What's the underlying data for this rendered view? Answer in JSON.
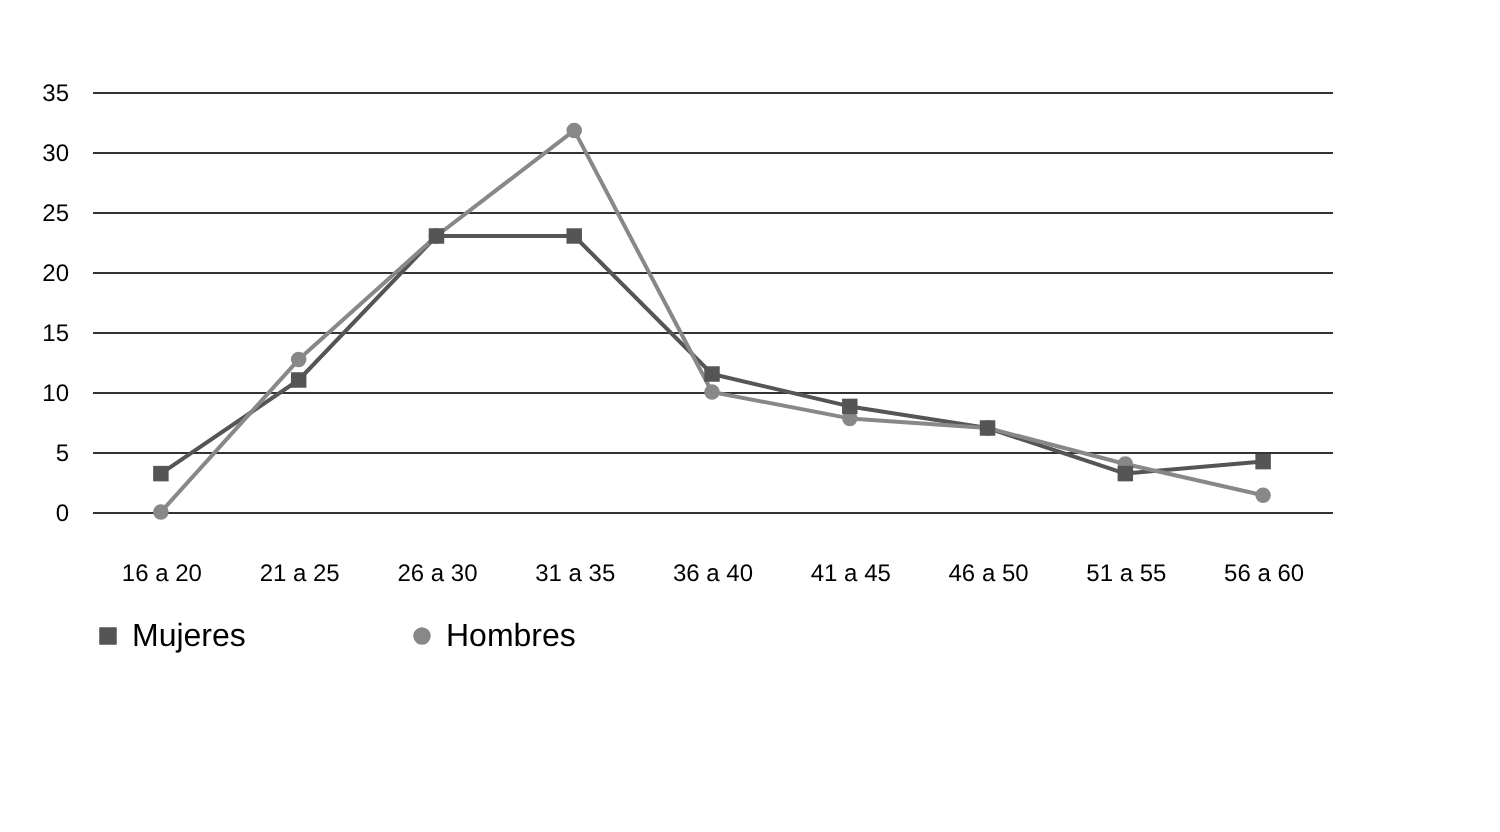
{
  "chart_data": {
    "type": "line",
    "categories": [
      "16 a 20",
      "21 a 25",
      "26 a 30",
      "31 a 35",
      "36 a 40",
      "41 a 45",
      "46 a 50",
      "51 a 55",
      "56 a 60"
    ],
    "series": [
      {
        "name": "Mujeres",
        "color": "#555555",
        "marker": "square",
        "values": [
          3.2,
          11,
          23,
          23,
          11.5,
          8.8,
          7,
          3.2,
          4.2
        ]
      },
      {
        "name": "Hombres",
        "color": "#888888",
        "marker": "circle",
        "values": [
          0,
          12.7,
          23,
          31.8,
          10,
          7.8,
          7,
          4,
          1.4
        ]
      }
    ],
    "ylim": [
      0,
      35
    ],
    "yticks": [
      0,
      5,
      10,
      15,
      20,
      25,
      30,
      35
    ],
    "grid": "y",
    "legend": "bottom",
    "line_style": "solid"
  }
}
